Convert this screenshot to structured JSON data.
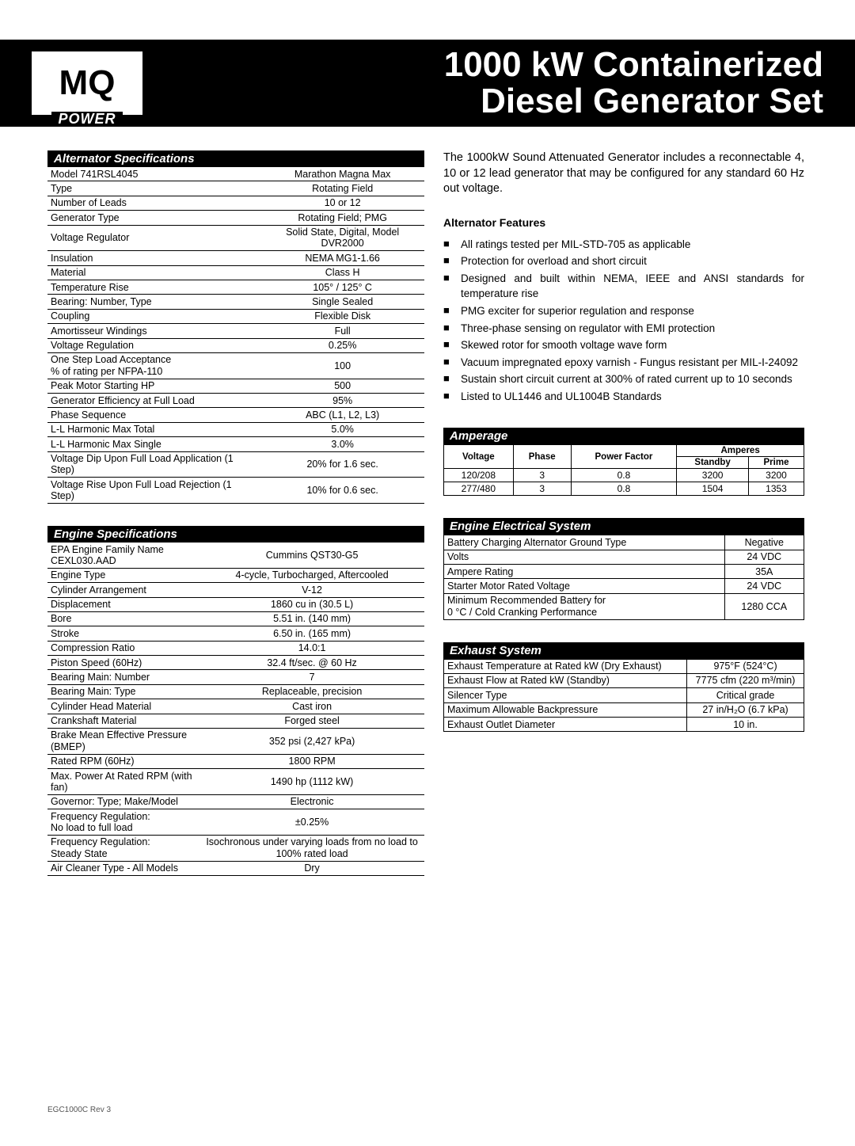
{
  "header": {
    "logo_main": "MQ",
    "logo_sub": "POWER",
    "title": "1000 kW Containerized\nDiesel Generator Set"
  },
  "alternator_specs": {
    "title": "Alternator Specifications",
    "rows": [
      [
        "Model 741RSL4045",
        "Marathon Magna Max"
      ],
      [
        "Type",
        "Rotating Field"
      ],
      [
        "Number of Leads",
        "10 or 12"
      ],
      [
        "Generator Type",
        "Rotating Field; PMG"
      ],
      [
        "Voltage Regulator",
        "Solid State, Digital, Model DVR2000"
      ],
      [
        "Insulation",
        "NEMA MG1-1.66"
      ],
      [
        "Material",
        "Class H"
      ],
      [
        "Temperature Rise",
        "105° / 125° C"
      ],
      [
        "Bearing:  Number, Type",
        "Single Sealed"
      ],
      [
        "Coupling",
        "Flexible Disk"
      ],
      [
        "Amortisseur Windings",
        "Full"
      ],
      [
        "Voltage Regulation",
        "0.25%"
      ],
      [
        "One Step Load Acceptance\n% of rating per NFPA-110",
        "100"
      ],
      [
        "Peak Motor Starting HP",
        "500"
      ],
      [
        "Generator Efficiency at Full Load",
        "95%"
      ],
      [
        "Phase Sequence",
        "ABC (L1, L2, L3)"
      ],
      [
        "L-L Harmonic Max Total",
        "5.0%"
      ],
      [
        "L-L Harmonic Max Single",
        "3.0%"
      ],
      [
        "Voltage Dip Upon Full Load Application (1 Step)",
        "20% for 1.6 sec."
      ],
      [
        "Voltage Rise Upon Full Load Rejection (1 Step)",
        "10% for 0.6 sec."
      ]
    ]
  },
  "intro": "The 1000kW Sound Attenuated Generator includes a reconnectable 4, 10 or 12 lead generator that may be configured for any standard 60 Hz out voltage.",
  "features_title": "Alternator Features",
  "features": [
    "All ratings tested per MIL-STD-705 as applicable",
    "Protection for overload and short circuit",
    "Designed and built within NEMA, IEEE and ANSI standards for temperature rise",
    "PMG exciter for superior regulation and response",
    "Three-phase sensing on regulator with EMI protection",
    "Skewed rotor for smooth voltage wave form",
    "Vacuum impregnated epoxy varnish - Fungus resistant per MIL-I-24092",
    "Sustain short circuit current at 300% of rated current up to 10 seconds",
    "Listed to UL1446 and UL1004B Standards"
  ],
  "engine_specs": {
    "title": "Engine Specifications",
    "rows": [
      [
        "EPA Engine Family Name CEXL030.AAD",
        "Cummins QST30-G5"
      ],
      [
        "Engine Type",
        "4-cycle, Turbocharged, Aftercooled"
      ],
      [
        "Cylinder Arrangement",
        "V-12"
      ],
      [
        "Displacement",
        "1860 cu in (30.5 L)"
      ],
      [
        "Bore",
        "5.51 in. (140 mm)"
      ],
      [
        "Stroke",
        "6.50 in. (165 mm)"
      ],
      [
        "Compression Ratio",
        "14.0:1"
      ],
      [
        "Piston Speed (60Hz)",
        "32.4 ft/sec. @ 60 Hz"
      ],
      [
        "Bearing Main:  Number",
        "7"
      ],
      [
        "Bearing Main:  Type",
        "Replaceable, precision"
      ],
      [
        "Cylinder Head Material",
        "Cast iron"
      ],
      [
        "Crankshaft Material",
        "Forged steel"
      ],
      [
        "Brake Mean Effective Pressure (BMEP)",
        "352 psi (2,427 kPa)"
      ],
      [
        "Rated RPM (60Hz)",
        "1800 RPM"
      ],
      [
        "Max. Power At Rated RPM (with fan)",
        "1490 hp (1112 kW)"
      ],
      [
        "Governor: Type; Make/Model",
        "Electronic"
      ],
      [
        "Frequency Regulation:\nNo load to full load",
        "±0.25%"
      ],
      [
        "Frequency Regulation:\nSteady State",
        "Isochronous under varying loads from no load to 100% rated load"
      ],
      [
        "Air Cleaner Type - All Models",
        "Dry"
      ]
    ]
  },
  "amperage": {
    "title": "Amperage",
    "headers": {
      "voltage": "Voltage",
      "phase": "Phase",
      "pf": "Power Factor",
      "amps": "Amperes",
      "standby": "Standby",
      "prime": "Prime"
    },
    "rows": [
      [
        "120/208",
        "3",
        "0.8",
        "3200",
        "3200"
      ],
      [
        "277/480",
        "3",
        "0.8",
        "1504",
        "1353"
      ]
    ]
  },
  "engine_electrical": {
    "title": "Engine Electrical System",
    "rows": [
      [
        "Battery Charging Alternator Ground Type",
        "Negative"
      ],
      [
        "Volts",
        "24 VDC"
      ],
      [
        "Ampere Rating",
        "35A"
      ],
      [
        "Starter Motor Rated Voltage",
        "24 VDC"
      ],
      [
        "Minimum Recommended Battery for\n0 °C / Cold Cranking Performance",
        "1280 CCA"
      ]
    ]
  },
  "exhaust": {
    "title": "Exhaust System",
    "rows": [
      [
        "Exhaust Temperature at Rated kW (Dry Exhaust)",
        "975°F (524°C)"
      ],
      [
        "Exhaust Flow at Rated kW (Standby)",
        "7775 cfm (220 m³/min)"
      ],
      [
        "Silencer Type",
        "Critical grade"
      ],
      [
        "Maximum Allowable Backpressure",
        "27 in/H₂O (6.7 kPa)"
      ],
      [
        "Exhaust Outlet Diameter",
        "10 in."
      ]
    ]
  },
  "footer": "EGC1000C Rev 3"
}
